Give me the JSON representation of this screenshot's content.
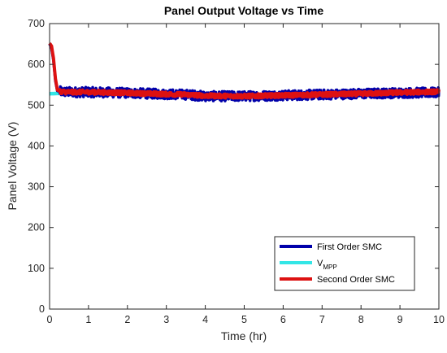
{
  "chart_data": {
    "type": "line",
    "title": "Panel Output Voltage vs Time",
    "xlabel": "Time (hr)",
    "ylabel": "Panel Voltage (V)",
    "xlim": [
      0,
      10
    ],
    "ylim": [
      0,
      700
    ],
    "x_ticks": [
      0,
      1,
      2,
      3,
      4,
      5,
      6,
      7,
      8,
      9,
      10
    ],
    "y_ticks": [
      0,
      100,
      200,
      300,
      400,
      500,
      600,
      700
    ],
    "grid": false,
    "legend_position": "bottom-right",
    "series": [
      {
        "name": "First Order SMC",
        "color": "#0000aa",
        "noise_amplitude": 12,
        "x": [
          0,
          0.05,
          0.1,
          0.15,
          0.2,
          0.3,
          0.5,
          1,
          2,
          3,
          3.5,
          4,
          5,
          6,
          7,
          8,
          9,
          10
        ],
        "y": [
          650,
          640,
          610,
          560,
          535,
          533,
          532,
          532,
          530,
          527,
          526,
          522,
          522,
          524,
          526,
          528,
          530,
          531
        ]
      },
      {
        "name": "V",
        "name_subscript": "MPP",
        "color": "#33e6e6",
        "noise_amplitude": 0,
        "x": [
          0,
          0.3,
          1,
          2,
          3,
          4,
          5,
          6,
          7,
          8,
          9,
          10
        ],
        "y": [
          528,
          529,
          530,
          529,
          527,
          524,
          523,
          524,
          525,
          527,
          529,
          530
        ]
      },
      {
        "name": "Second Order SMC",
        "color": "#dd1111",
        "noise_amplitude": 5,
        "x": [
          0,
          0.05,
          0.1,
          0.15,
          0.2,
          0.3,
          0.5,
          1,
          2,
          3,
          3.5,
          4,
          5,
          6,
          7,
          8,
          9,
          10
        ],
        "y": [
          652,
          645,
          615,
          565,
          537,
          533,
          532,
          532,
          530,
          527,
          526,
          523,
          522,
          524,
          526,
          528,
          531,
          533
        ]
      }
    ]
  }
}
